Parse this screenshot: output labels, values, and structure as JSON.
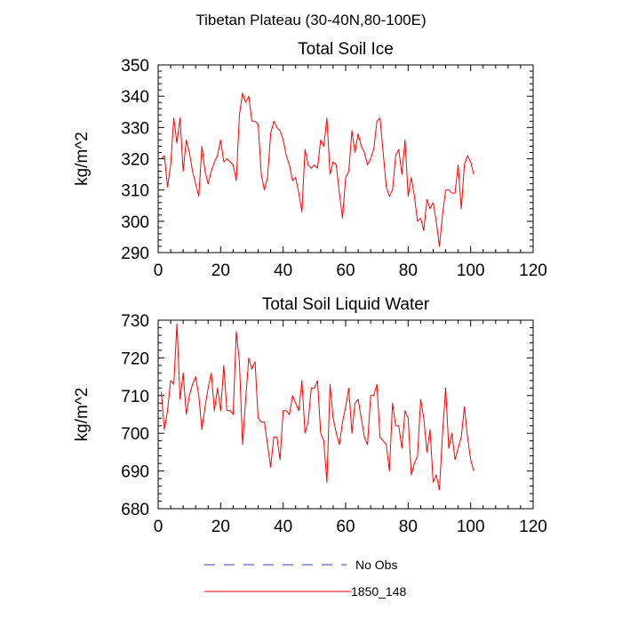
{
  "page_title": "Tibetan Plateau (30-40N,80-100E)",
  "colors": {
    "series": "#ff0000",
    "obs": "#3a3aa8",
    "axis": "#000000"
  },
  "legend": {
    "entries": [
      "No Obs",
      "1850_148"
    ],
    "styles": [
      "dashed",
      "solid"
    ]
  },
  "chart_data": [
    {
      "type": "line",
      "title": "Total Soil Ice",
      "ylabel": "kg/m^2",
      "xlim": [
        0,
        120
      ],
      "ylim": [
        290,
        350
      ],
      "xticks": [
        0,
        20,
        40,
        60,
        80,
        100,
        120
      ],
      "yticks": [
        290,
        300,
        310,
        320,
        330,
        340,
        350
      ],
      "grid": false,
      "series": [
        {
          "values": [
            320,
            321,
            311,
            318,
            333,
            325,
            333,
            316,
            326,
            322,
            316,
            312,
            308,
            324,
            316,
            312,
            316,
            319,
            321,
            326,
            319,
            320,
            319,
            318,
            313,
            334,
            341,
            338,
            340,
            332,
            332,
            331,
            315,
            310,
            314,
            328,
            332,
            330,
            329,
            326,
            321,
            318,
            313,
            314,
            309,
            303,
            323,
            318,
            317,
            318,
            317,
            326,
            324,
            333,
            315,
            319,
            318,
            309,
            301,
            314,
            316,
            329,
            322,
            328,
            324,
            322,
            318,
            320,
            323,
            332,
            333,
            322,
            311,
            308,
            310,
            321,
            323,
            315,
            326,
            308,
            314,
            308,
            300,
            301,
            297,
            307,
            304,
            306,
            300,
            292,
            302,
            310,
            310,
            309,
            309,
            318,
            304,
            318,
            321,
            319,
            315
          ]
        }
      ]
    },
    {
      "type": "line",
      "title": "Total Soil Liquid Water",
      "ylabel": "kg/m^2",
      "xlim": [
        0,
        120
      ],
      "ylim": [
        680,
        730
      ],
      "xticks": [
        0,
        20,
        40,
        60,
        80,
        100,
        120
      ],
      "yticks": [
        680,
        690,
        700,
        710,
        720,
        730
      ],
      "grid": false,
      "series": [
        {
          "values": [
            711,
            701,
            706,
            714,
            713,
            729,
            709,
            716,
            705,
            710,
            713,
            715,
            710,
            701,
            707,
            712,
            716,
            706,
            712,
            706,
            718,
            706,
            706,
            705,
            727,
            719,
            697,
            709,
            720,
            717,
            719,
            704,
            703,
            703,
            697,
            691,
            699,
            699,
            693,
            706,
            706,
            705,
            710,
            708,
            706,
            714,
            700,
            703,
            712,
            712,
            714,
            700,
            698,
            687,
            713,
            704,
            700,
            697,
            703,
            707,
            712,
            700,
            708,
            709,
            704,
            699,
            697,
            710,
            710,
            713,
            699,
            698,
            697,
            690,
            708,
            702,
            702,
            696,
            706,
            704,
            689,
            692,
            694,
            709,
            704,
            695,
            701,
            687,
            689,
            685,
            700,
            712,
            696,
            700,
            693,
            696,
            699,
            707,
            699,
            693,
            690
          ]
        }
      ]
    }
  ]
}
